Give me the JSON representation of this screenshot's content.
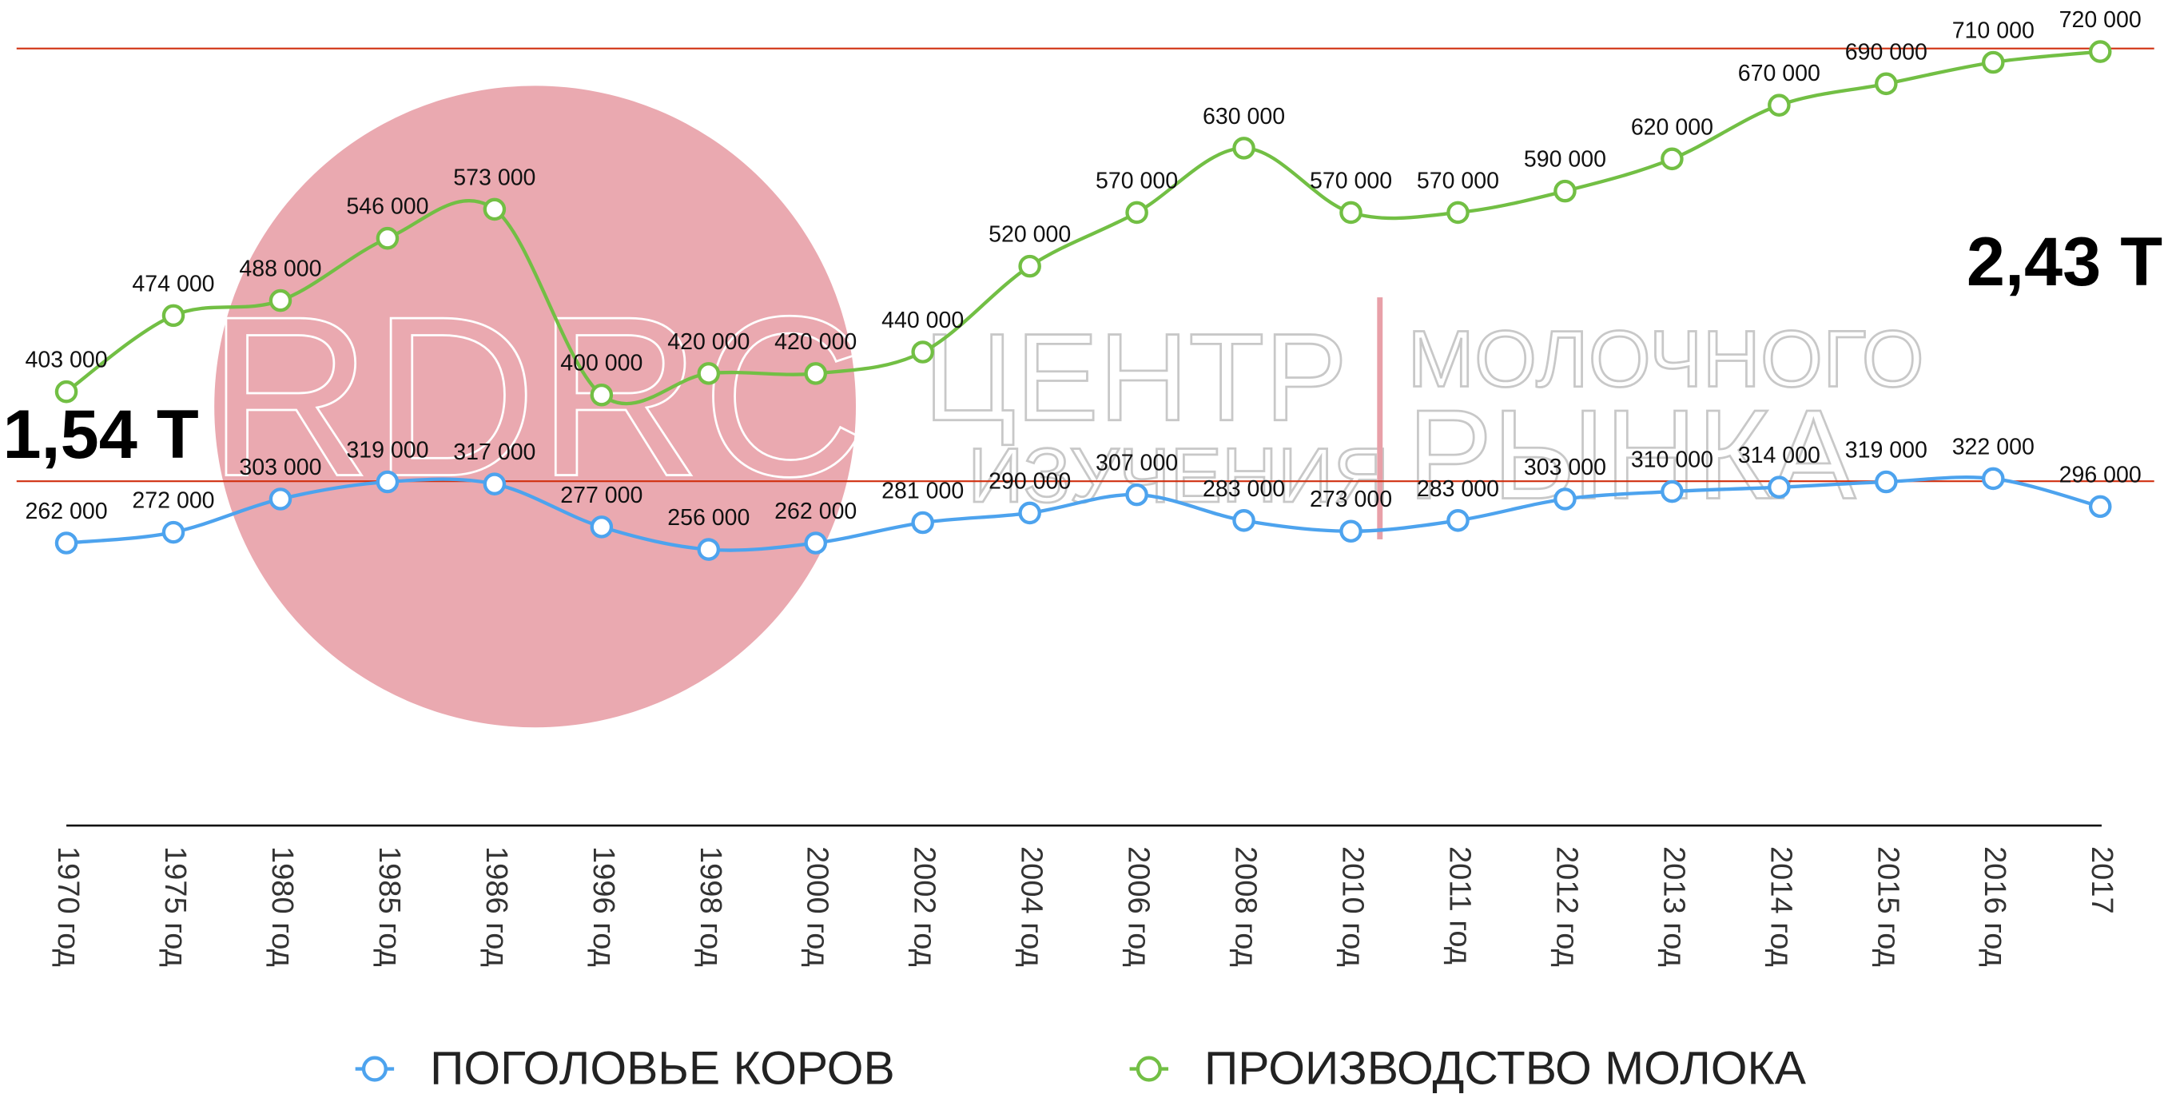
{
  "watermark": {
    "logo": "RDRC",
    "line1": "ЦЕНТР",
    "line2": "ИЗУЧЕНИЯ",
    "line3": "МОЛОЧНОГО",
    "line4": "РЫНКА"
  },
  "chart_data": {
    "type": "line",
    "categories": [
      "1970 год",
      "1975 год",
      "1980 год",
      "1985 год",
      "1986 год",
      "1996 год",
      "1998 год",
      "2000 год",
      "2002 год",
      "2004 год",
      "2006 год",
      "2008 год",
      "2010 год",
      "2011 год",
      "2012 год",
      "2013 год",
      "2014 год",
      "2015 год",
      "2016 год",
      "2017"
    ],
    "ylim": [
      0,
      768000
    ],
    "series": [
      {
        "name": "ПОГОЛОВЬЕ КОРОВ",
        "color": "#4da3ee",
        "values": [
          262000,
          272000,
          303000,
          319000,
          317000,
          277000,
          256000,
          262000,
          281000,
          290000,
          307000,
          283000,
          273000,
          283000,
          303000,
          310000,
          314000,
          319000,
          322000,
          296000
        ],
        "value_labels": [
          "262 000",
          "272 000",
          "303 000",
          "319 000",
          "317 000",
          "277 000",
          "256 000",
          "262 000",
          "281 000",
          "290 000",
          "307 000",
          "283 000",
          "273 000",
          "283 000",
          "303 000",
          "310 000",
          "314 000",
          "319 000",
          "322 000",
          "296 000"
        ]
      },
      {
        "name": "ПРОИЗВОДСТВО МОЛОКА",
        "color": "#72bf44",
        "values": [
          403000,
          474000,
          488000,
          546000,
          573000,
          400000,
          420000,
          420000,
          440000,
          520000,
          570000,
          630000,
          570000,
          570000,
          590000,
          620000,
          670000,
          690000,
          710000,
          720000
        ],
        "value_labels": [
          "403 000",
          "474 000",
          "488 000",
          "546 000",
          "573 000",
          "400 000",
          "420 000",
          "420 000",
          "440 000",
          "520 000",
          "570 000",
          "630 000",
          "570 000",
          "570 000",
          "590 000",
          "620 000",
          "670 000",
          "690 000",
          "710 000",
          "720 000"
        ]
      }
    ],
    "annotations": [
      "1,54 Т",
      "2,43 Т"
    ],
    "legend": "bottom"
  }
}
